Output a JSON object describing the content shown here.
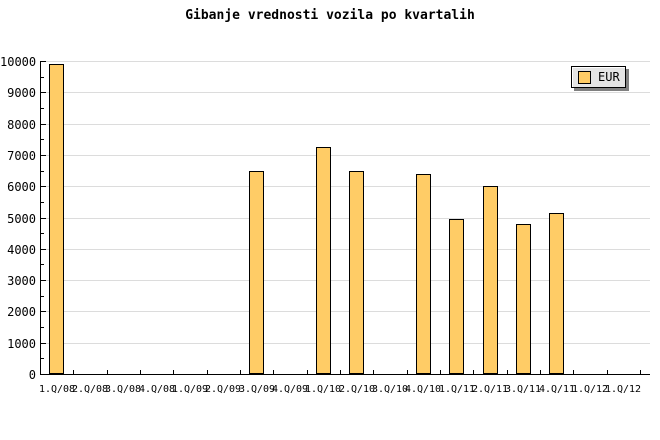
{
  "title": "Gibanje vrednosti vozila po kvartalih",
  "legend": {
    "label": "EUR",
    "swatch_color": "#ffcc66"
  },
  "colors": {
    "bar_fill": "#ffcc66",
    "bar_border": "#000000",
    "gridline": "#dcdcdc",
    "axis": "#000000",
    "legend_bg": "#e4e4e4",
    "legend_shadow": "#808080"
  },
  "chart_data": {
    "type": "bar",
    "title": "Gibanje vrednosti vozila po kvartalih",
    "categories": [
      "1.Q/08",
      "2.Q/08",
      "3.Q/08",
      "4.Q/08",
      "1.Q/09",
      "2.Q/09",
      "3.Q/09",
      "4.Q/09",
      "1.Q/10",
      "2.Q/10",
      "3.Q/10",
      "4.Q/10",
      "1.Q/11",
      "2.Q/11",
      "3.Q/11",
      "4.Q/11",
      "1.Q/12",
      "1.Q/12"
    ],
    "series": [
      {
        "name": "EUR",
        "values": [
          9900,
          null,
          null,
          null,
          null,
          null,
          6500,
          null,
          7250,
          6500,
          null,
          6400,
          4950,
          6000,
          4800,
          5150,
          null,
          null
        ]
      }
    ],
    "ylabel": "",
    "xlabel": "",
    "ylim": [
      0,
      10000
    ],
    "ytick_step": 1000,
    "yminor_step": 500,
    "ytick_labels": [
      "0",
      "1000",
      "2000",
      "3000",
      "4000",
      "5000",
      "6000",
      "7000",
      "8000",
      "9000",
      "10000"
    ],
    "grid": true,
    "legend_position": "top-right"
  }
}
